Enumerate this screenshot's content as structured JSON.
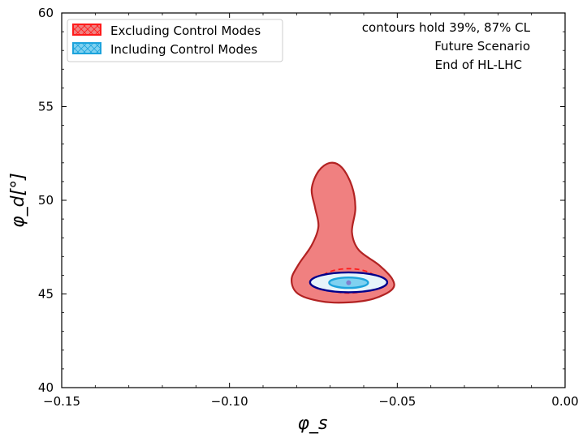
{
  "chart_data": {
    "type": "contour",
    "xlabel": "φ_s",
    "ylabel": "φ_d[°]",
    "xlim": [
      -0.15,
      0.0
    ],
    "ylim": [
      40,
      60
    ],
    "xticks": [
      -0.15,
      -0.1,
      -0.05,
      0.0
    ],
    "xtick_labels": [
      "−0.15",
      "−0.10",
      "−0.05",
      "0.00"
    ],
    "yticks": [
      40,
      45,
      50,
      55,
      60
    ],
    "ytick_labels": [
      "40",
      "45",
      "50",
      "55",
      "60"
    ],
    "legend": {
      "location": "upper-left",
      "entries": [
        {
          "label": "Excluding Control Modes",
          "color": "#ff1a1a"
        },
        {
          "label": "Including Control Modes",
          "color": "#1ca3dc"
        }
      ]
    },
    "annotations": [
      "contours hold 39%, 87% CL",
      "Future Scenario",
      "End of HL-LHC"
    ],
    "series": [
      {
        "name": "Excluding Control Modes",
        "level": "87% CL",
        "fill": "#f08080",
        "stroke": "#b22222",
        "outline": [
          [
            -0.0645,
            44.55
          ],
          [
            -0.057,
            44.75
          ],
          [
            -0.0515,
            45.25
          ],
          [
            -0.0515,
            45.8
          ],
          [
            -0.0555,
            46.55
          ],
          [
            -0.0615,
            47.35
          ],
          [
            -0.0635,
            48.3
          ],
          [
            -0.0625,
            49.55
          ],
          [
            -0.0635,
            50.75
          ],
          [
            -0.0665,
            51.75
          ],
          [
            -0.07,
            52.0
          ],
          [
            -0.0735,
            51.55
          ],
          [
            -0.0755,
            50.6
          ],
          [
            -0.0745,
            49.6
          ],
          [
            -0.0735,
            48.6
          ],
          [
            -0.0755,
            47.6
          ],
          [
            -0.0795,
            46.55
          ],
          [
            -0.0815,
            45.75
          ],
          [
            -0.0795,
            45.0
          ],
          [
            -0.0725,
            44.6
          ]
        ]
      },
      {
        "name": "Excluding Control Modes",
        "level": "39% CL",
        "stroke": "#ff1a1a",
        "dashed": true,
        "center": [
          -0.0645,
          45.7
        ],
        "half_width": [
          0.0085,
          0.65
        ]
      },
      {
        "name": "Including Control Modes",
        "level": "87% CL",
        "stroke": "#00008b",
        "fill": "#e6f4fa",
        "center": [
          -0.0645,
          45.62
        ],
        "half_width": [
          0.0115,
          0.53
        ]
      },
      {
        "name": "Including Control Modes",
        "level": "39% CL",
        "stroke": "#1ca3dc",
        "fill": "#7fd1f0",
        "center": [
          -0.0645,
          45.6
        ],
        "half_width": [
          0.0058,
          0.28
        ]
      }
    ],
    "best_fit": [
      -0.0645,
      45.6
    ]
  }
}
